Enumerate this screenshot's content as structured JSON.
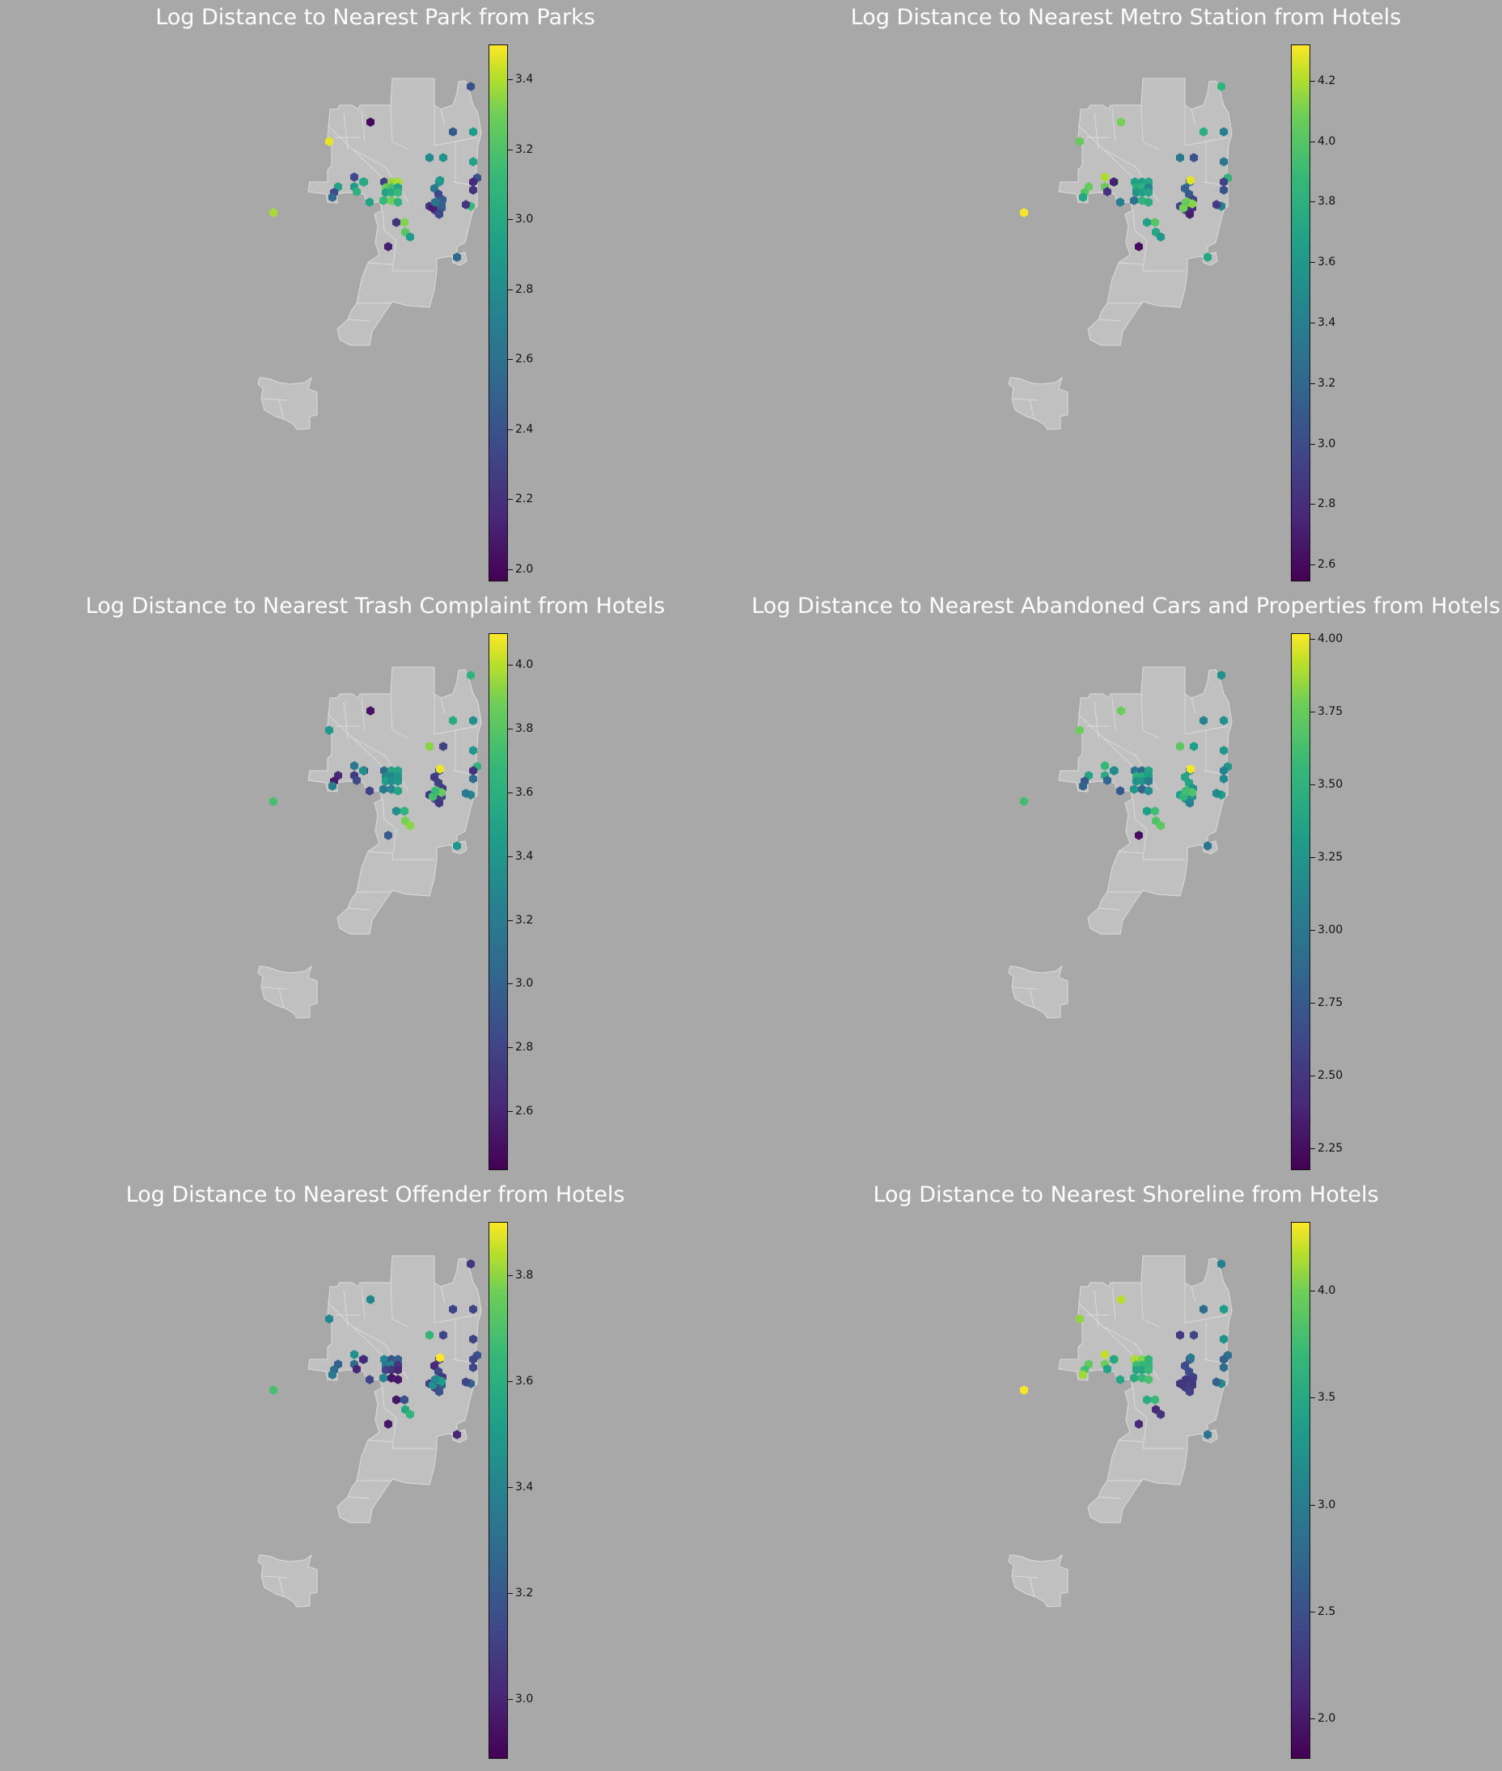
{
  "colormap": {
    "name": "viridis",
    "stops": [
      "#440154",
      "#482878",
      "#3e4a89",
      "#31688e",
      "#26828e",
      "#1f9e89",
      "#35b779",
      "#6ece58",
      "#b5de2b",
      "#fde725"
    ]
  },
  "colors": {
    "background": "#a8a8a8",
    "land": "#c0c0c0",
    "boundary": "#dcdcdc"
  },
  "maps": [
    {
      "title": "Log Distance to Nearest Park from Parks",
      "colorbar": {
        "min": 1.97,
        "max": 3.5,
        "ticks": [
          "2.0",
          "2.2",
          "2.4",
          "2.6",
          "2.8",
          "3.0",
          "3.2",
          "3.4"
        ]
      },
      "hex_values": [
        3.45,
        2.0,
        2.3,
        2.8,
        2.85,
        2.85,
        2.3,
        2.5,
        2.25,
        3.25,
        3.3,
        3.15,
        3.05,
        2.85,
        2.85,
        2.9,
        3.0,
        3.0,
        3.15,
        2.95,
        2.85,
        2.95,
        2.9,
        2.2,
        3.2,
        3.1,
        2.8,
        2.7,
        2.75,
        2.7,
        2.6,
        2.3,
        2.4,
        2.2,
        2.25,
        2.4,
        2.3,
        3.3,
        2.8,
        2.85,
        3.0,
        2.1,
        2.5,
        2.4,
        2.35,
        2.35,
        2.15,
        2.2,
        2.2,
        2.8,
        2.45,
        2.45,
        2.1,
        2.55
      ]
    },
    {
      "title": "Log Distance to Nearest Metro Station from Hotels",
      "colorbar": {
        "min": 2.55,
        "max": 4.32,
        "ticks": [
          "2.6",
          "2.8",
          "3.0",
          "3.2",
          "3.4",
          "3.6",
          "3.8",
          "4.0",
          "4.2"
        ]
      },
      "hex_values": [
        3.9,
        3.95,
        4.1,
        3.9,
        3.85,
        3.9,
        3.85,
        3.6,
        3.55,
        3.55,
        3.6,
        3.65,
        3.7,
        3.35,
        3.45,
        3.55,
        3.6,
        3.2,
        3.7,
        3.65,
        3.3,
        2.8,
        2.7,
        3.55,
        3.85,
        3.6,
        3.5,
        3.25,
        3.0,
        3.2,
        3.1,
        3.05,
        2.9,
        2.9,
        3.0,
        2.8,
        2.7,
        4.3,
        3.3,
        3.25,
        3.3,
        2.6,
        3.6,
        3.65,
        3.7,
        3.7,
        2.9,
        3.0,
        2.85,
        4.25,
        4.05,
        4.0,
        3.95,
        3.9
      ]
    },
    {
      "title": "Log Distance to Nearest Trash Complaint from Hotels",
      "colorbar": {
        "min": 2.42,
        "max": 4.1,
        "ticks": [
          "2.6",
          "2.8",
          "3.0",
          "3.2",
          "3.4",
          "3.6",
          "3.8",
          "4.0"
        ]
      },
      "hex_values": [
        3.3,
        2.5,
        3.1,
        2.7,
        2.6,
        2.6,
        2.55,
        3.15,
        3.0,
        3.4,
        3.4,
        3.2,
        3.2,
        3.3,
        3.35,
        3.25,
        3.3,
        3.1,
        3.2,
        3.4,
        2.75,
        2.8,
        3.25,
        3.25,
        3.5,
        3.75,
        3.8,
        3.8,
        2.75,
        2.8,
        2.7,
        2.75,
        2.7,
        2.7,
        2.8,
        2.75,
        2.7,
        3.6,
        3.25,
        3.3,
        3.2,
        2.9,
        3.3,
        3.45,
        3.5,
        3.5,
        2.65,
        3.0,
        3.1,
        4.05,
        3.75,
        3.7,
        3.6,
        3.55
      ]
    },
    {
      "title": "Log Distance to Nearest Abandoned Cars and Properties from Hotels",
      "colorbar": {
        "min": 2.18,
        "max": 4.02,
        "ticks": [
          "2.25",
          "2.50",
          "2.75",
          "3.00",
          "3.25",
          "3.50",
          "3.75",
          "4.00"
        ]
      },
      "hex_values": [
        3.6,
        3.6,
        3.4,
        3.3,
        3.3,
        3.25,
        2.7,
        2.75,
        2.9,
        2.8,
        3.25,
        3.35,
        3.3,
        3.2,
        3.1,
        3.15,
        2.95,
        3.15,
        2.75,
        3.1,
        2.7,
        2.8,
        3.05,
        3.2,
        3.45,
        3.5,
        3.55,
        3.55,
        3.2,
        3.1,
        3.25,
        3.25,
        3.1,
        3.2,
        3.15,
        3.1,
        3.0,
        3.45,
        3.1,
        3.15,
        3.2,
        2.25,
        2.9,
        3.0,
        3.1,
        3.15,
        3.0,
        3.05,
        3.05,
        4.0,
        3.45,
        3.5,
        3.4,
        3.45
      ]
    },
    {
      "title": "Log Distance to Nearest Offender from Hotels",
      "colorbar": {
        "min": 2.89,
        "max": 3.9,
        "ticks": [
          "3.0",
          "3.2",
          "3.4",
          "3.6",
          "3.8"
        ]
      },
      "hex_values": [
        3.35,
        3.35,
        3.4,
        3.25,
        3.3,
        3.2,
        3.25,
        3.3,
        3.35,
        3.15,
        3.2,
        3.3,
        3.35,
        3.05,
        3.1,
        3.05,
        3.0,
        3.35,
        2.95,
        2.95,
        3.1,
        3.0,
        3.0,
        2.95,
        3.15,
        3.5,
        3.55,
        3.55,
        3.1,
        3.05,
        3.0,
        3.1,
        3.05,
        3.1,
        3.05,
        3.2,
        3.15,
        3.6,
        3.1,
        3.1,
        3.2,
        2.95,
        3.0,
        3.1,
        3.05,
        3.15,
        3.1,
        3.1,
        3.1,
        3.9,
        3.5,
        3.45,
        3.4,
        3.35
      ]
    },
    {
      "title": "Log Distance to Nearest Shoreline from Hotels",
      "colorbar": {
        "min": 1.82,
        "max": 4.32,
        "ticks": [
          "2.0",
          "2.5",
          "3.0",
          "3.5",
          "4.0"
        ]
      },
      "hex_values": [
        3.9,
        4.05,
        4.1,
        3.75,
        3.8,
        3.7,
        3.55,
        3.95,
        4.0,
        3.85,
        3.45,
        3.55,
        3.5,
        3.45,
        3.3,
        3.3,
        3.5,
        3.35,
        3.5,
        3.6,
        3.3,
        3.25,
        3.3,
        3.35,
        3.5,
        2.1,
        2.2,
        2.25,
        2.35,
        2.45,
        2.4,
        2.4,
        2.3,
        2.2,
        2.35,
        2.25,
        2.3,
        4.3,
        3.2,
        3.1,
        3.0,
        2.1,
        2.8,
        2.7,
        2.9,
        2.75,
        2.6,
        2.7,
        2.6,
        2.85,
        2.3,
        2.25,
        2.2,
        2.2
      ]
    }
  ]
}
